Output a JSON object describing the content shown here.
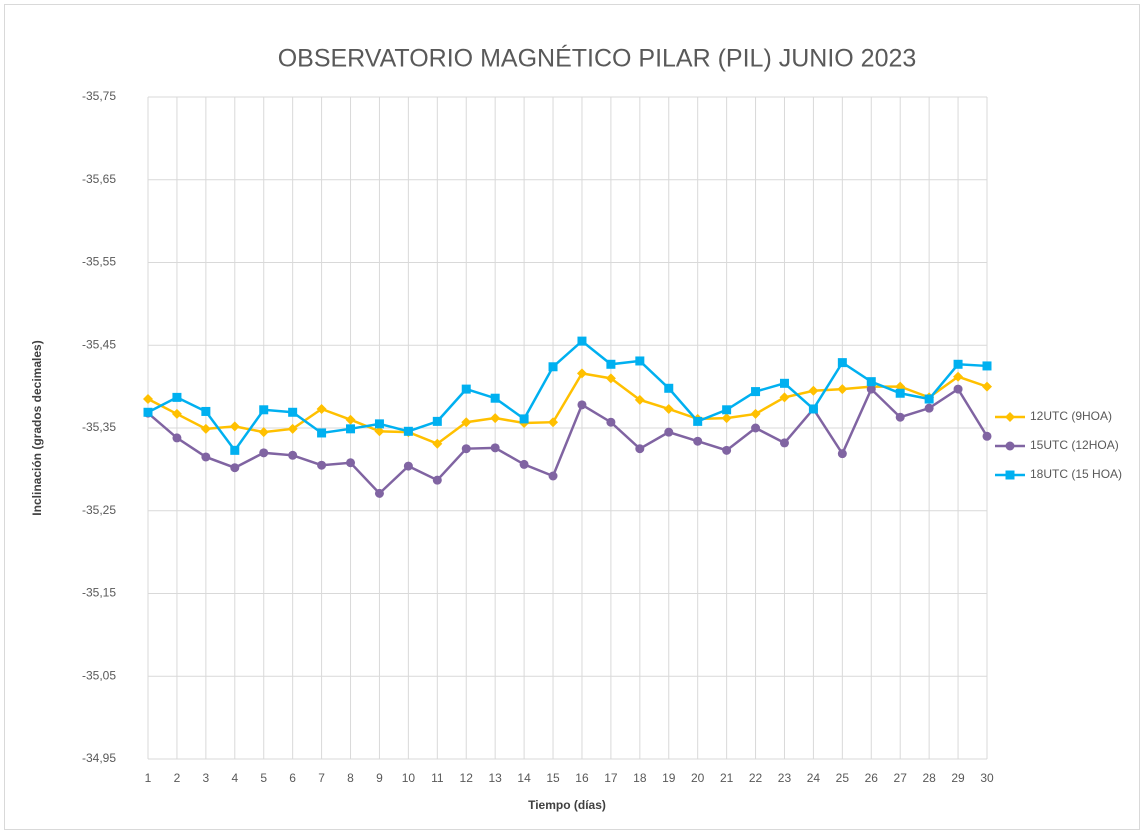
{
  "chart_data": {
    "type": "line",
    "title": "OBSERVATORIO MAGNÉTICO PILAR (PIL) JUNIO 2023",
    "x_label": "Tiempo (días)",
    "y_label": "Inclinación (grados decimales)",
    "categories": [
      "1",
      "2",
      "3",
      "4",
      "5",
      "6",
      "7",
      "8",
      "9",
      "10",
      "11",
      "12",
      "13",
      "14",
      "15",
      "16",
      "17",
      "18",
      "19",
      "20",
      "21",
      "22",
      "23",
      "24",
      "25",
      "26",
      "27",
      "28",
      "29",
      "30"
    ],
    "ylim": [
      -34.95,
      -35.75
    ],
    "yticks": [
      {
        "value": -35.75,
        "label": "-35,75"
      },
      {
        "value": -35.65,
        "label": "-35,65"
      },
      {
        "value": -35.55,
        "label": "-35,55"
      },
      {
        "value": -35.45,
        "label": "-35,45"
      },
      {
        "value": -35.35,
        "label": "-35,35"
      },
      {
        "value": -35.25,
        "label": "-35,25"
      },
      {
        "value": -35.15,
        "label": "-35,15"
      },
      {
        "value": -35.05,
        "label": "-35,05"
      },
      {
        "value": -34.95,
        "label": "-34,95"
      }
    ],
    "grid": true,
    "legend": "right",
    "series": [
      {
        "name": "12UTC (9HOA)",
        "color": "#ffc000",
        "marker": "diamond",
        "values": [
          -35.385,
          -35.367,
          -35.349,
          -35.352,
          -35.345,
          -35.349,
          -35.373,
          -35.36,
          -35.346,
          -35.345,
          -35.331,
          -35.357,
          -35.362,
          -35.356,
          -35.357,
          -35.416,
          -35.41,
          -35.384,
          -35.373,
          -35.361,
          -35.362,
          -35.367,
          -35.387,
          -35.395,
          -35.397,
          -35.4,
          -35.4,
          -35.387,
          -35.412,
          -35.4
        ]
      },
      {
        "name": "15UTC (12HOA)",
        "color": "#8064a2",
        "marker": "circle",
        "values": [
          -35.368,
          -35.338,
          -35.315,
          -35.302,
          -35.32,
          -35.317,
          -35.305,
          -35.308,
          -35.271,
          -35.304,
          -35.287,
          -35.325,
          -35.326,
          -35.306,
          -35.292,
          -35.378,
          -35.357,
          -35.325,
          -35.345,
          -35.334,
          -35.323,
          -35.35,
          -35.332,
          -35.373,
          -35.319,
          -35.397,
          -35.363,
          -35.374,
          -35.397,
          -35.34
        ]
      },
      {
        "name": "18UTC (15 HOA)",
        "color": "#00b0f0",
        "marker": "square",
        "values": [
          -35.369,
          -35.387,
          -35.37,
          -35.323,
          -35.372,
          -35.369,
          -35.344,
          -35.349,
          -35.355,
          -35.346,
          -35.358,
          -35.397,
          -35.386,
          -35.361,
          -35.424,
          -35.455,
          -35.427,
          -35.431,
          -35.398,
          -35.358,
          -35.372,
          -35.394,
          -35.404,
          -35.373,
          -35.429,
          -35.406,
          -35.392,
          -35.385,
          -35.427,
          -35.425
        ]
      }
    ]
  }
}
